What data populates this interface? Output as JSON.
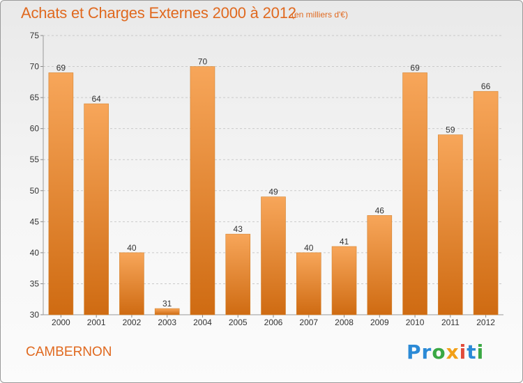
{
  "header": {
    "title": "Achats et Charges Externes 2000 à 2012",
    "unit": "(en milliers d'€)"
  },
  "footer": {
    "commune": "CAMBERNON",
    "logo_parts": [
      "Pr",
      "o",
      "x",
      "i",
      "t",
      "i"
    ]
  },
  "colors": {
    "bar_top": "#f7a65a",
    "bar_bottom": "#cf6b12",
    "bar_edge": "#d4832e",
    "accent": "#e0691f",
    "grid": "#c9c9c9",
    "axis_text": "#333333"
  },
  "chart_data": {
    "type": "bar",
    "title": "Achats et Charges Externes 2000 à 2012",
    "subtitle": "(en milliers d'€)",
    "categories": [
      "2000",
      "2001",
      "2002",
      "2003",
      "2004",
      "2005",
      "2006",
      "2007",
      "2008",
      "2009",
      "2010",
      "2011",
      "2012"
    ],
    "values": [
      69,
      64,
      40,
      31,
      70,
      43,
      49,
      40,
      41,
      46,
      69,
      59,
      66
    ],
    "data_labels": [
      "69",
      "64",
      "40",
      "31",
      "70",
      "43",
      "49",
      "40",
      "41",
      "46",
      "69",
      "59",
      "66"
    ],
    "xlabel": "",
    "ylabel": "",
    "ylim": [
      30,
      75
    ],
    "yticks": [
      30,
      35,
      40,
      45,
      50,
      55,
      60,
      65,
      70,
      75
    ],
    "grid": true,
    "legend": "none"
  }
}
